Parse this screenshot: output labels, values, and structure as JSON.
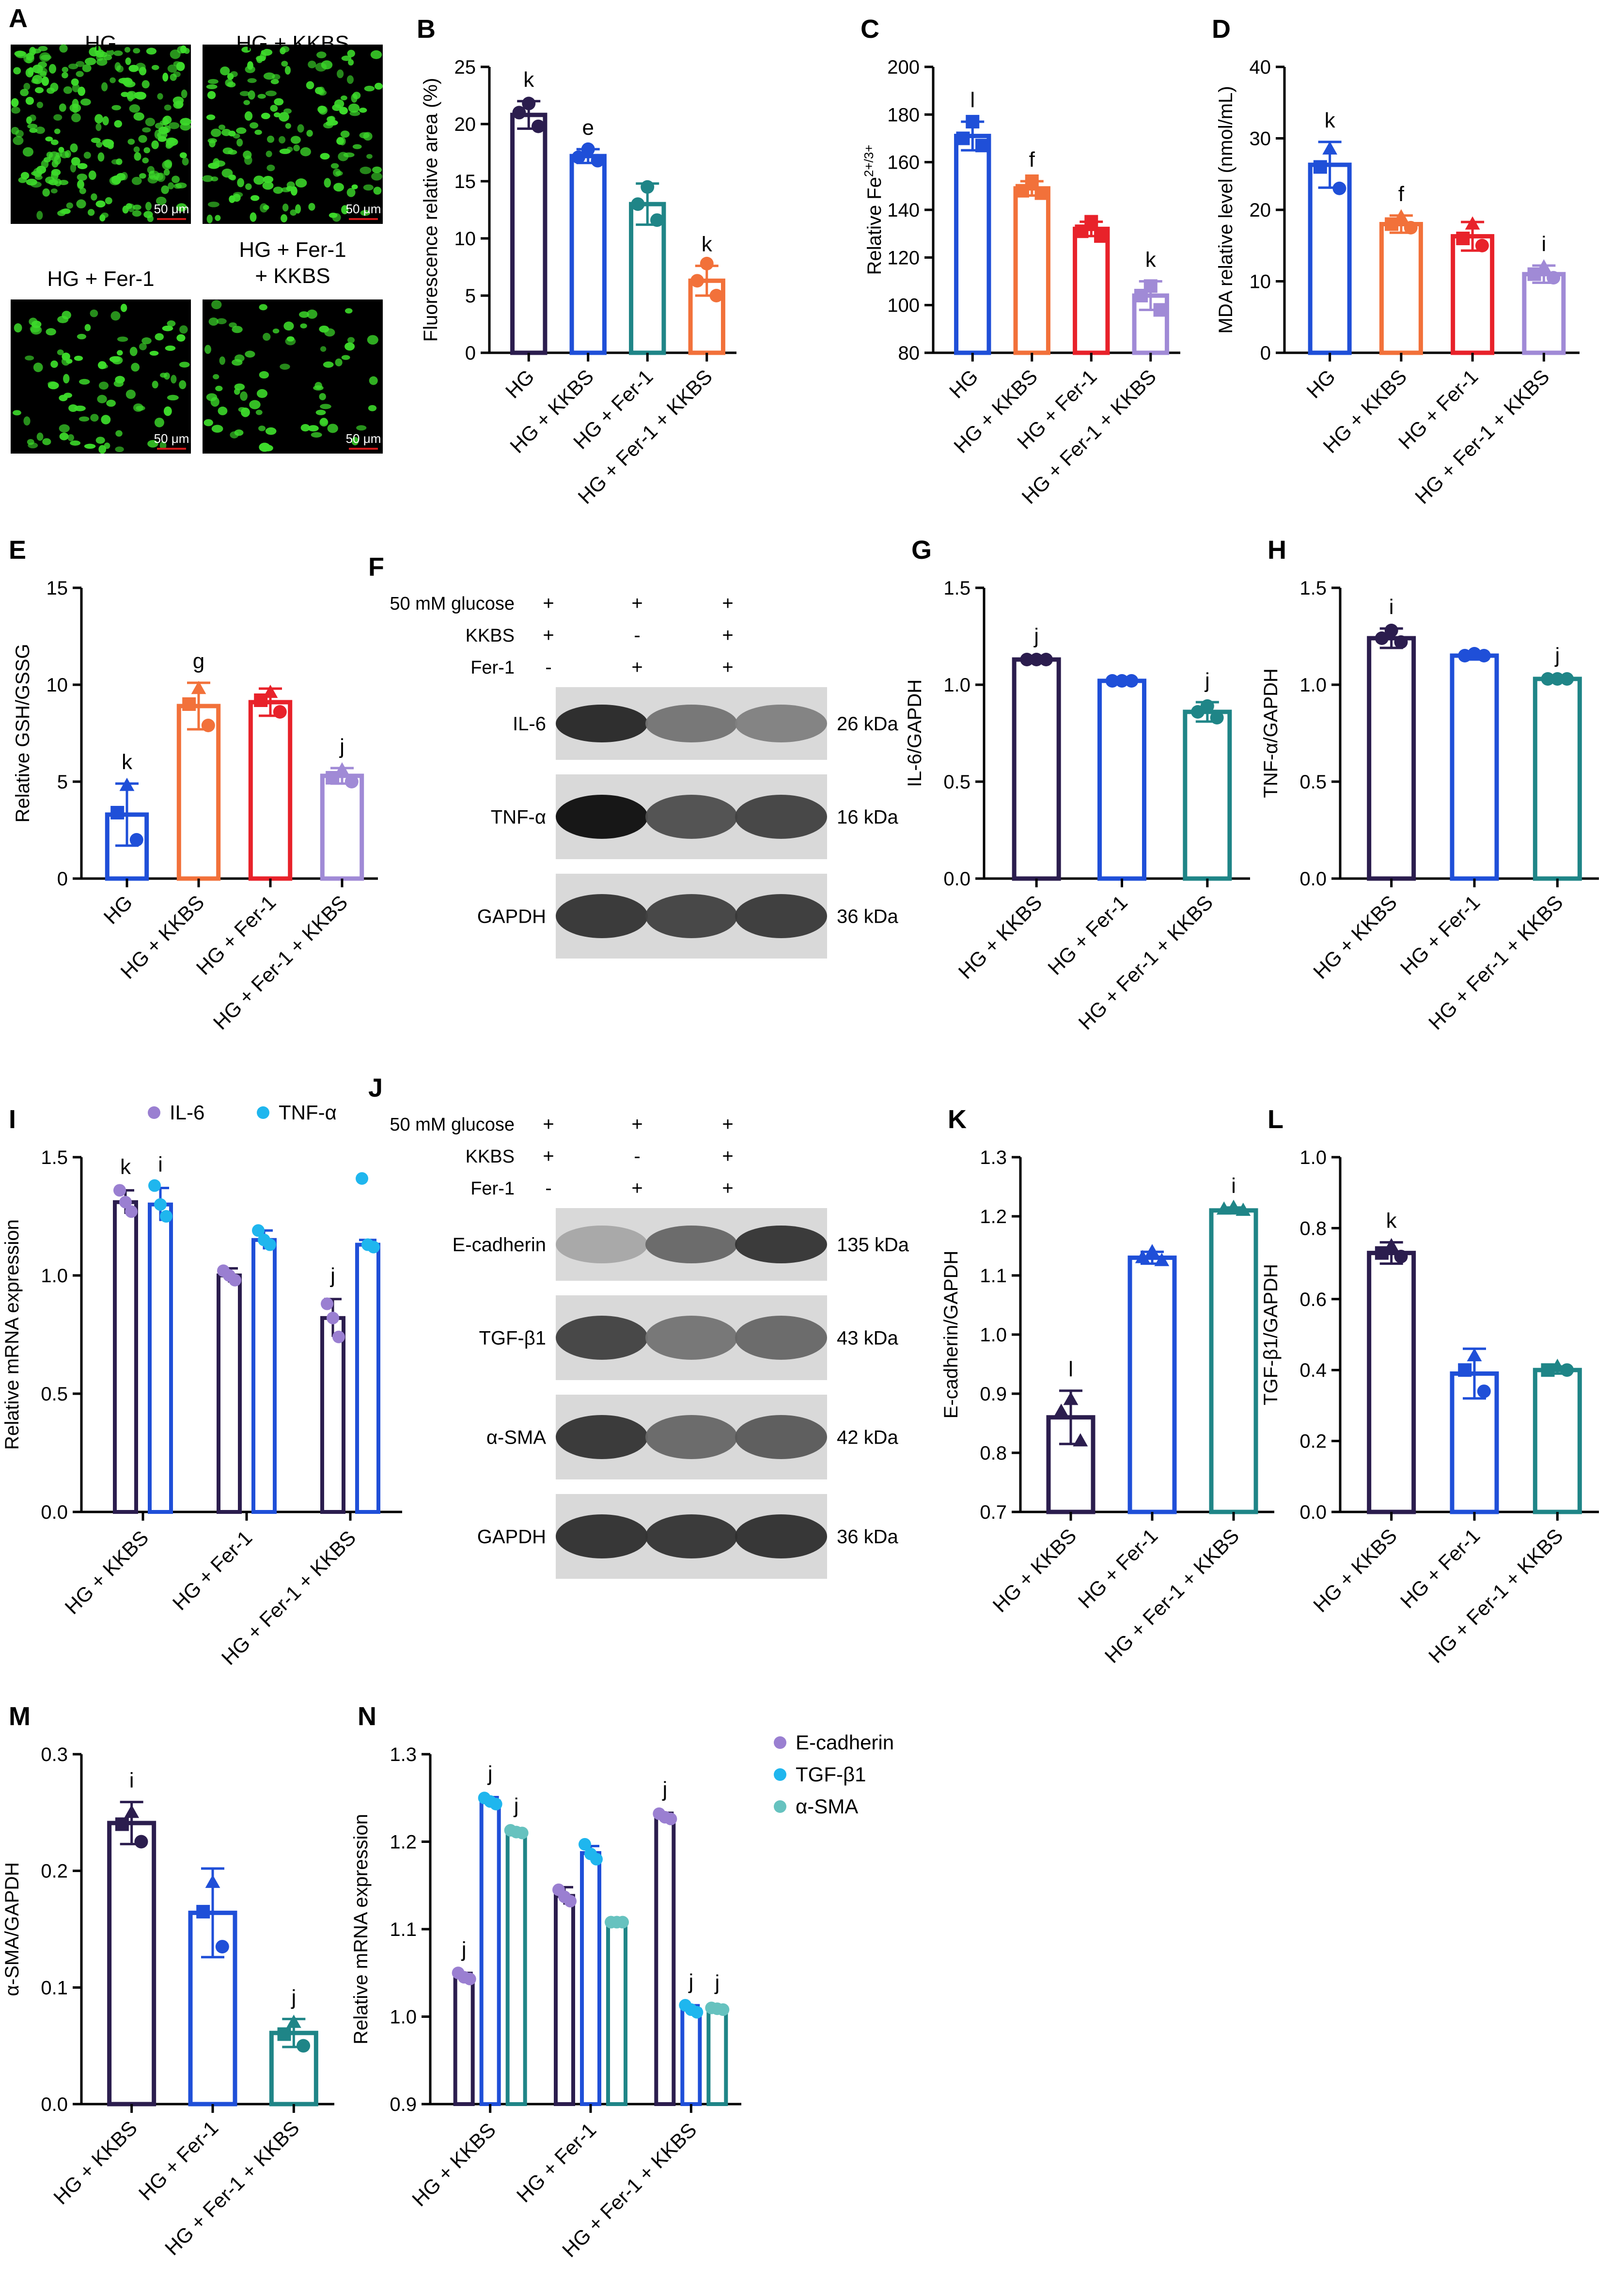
{
  "colors": {
    "navy": "#2b1d4e",
    "blue": "#1f4fd8",
    "teal": "#1f8587",
    "orange": "#f2713a",
    "red": "#e8222a",
    "lilac": "#a08ad6",
    "purple_dot": "#9a7fd1",
    "cyan_dot": "#1fb6ee",
    "tealdot": "#66c2bf",
    "green_cells": "#3ddc2b",
    "scale_bar": "#d11a1a"
  },
  "panels": {
    "A": {
      "letter": "A",
      "images": [
        {
          "label": "HG",
          "scale": "50 μm",
          "density": 0.95
        },
        {
          "label": "HG + KKBS",
          "scale": "50 μm",
          "density": 0.65
        },
        {
          "label": "HG + Fer-1",
          "scale": "50 μm",
          "density": 0.35
        },
        {
          "label": "HG + Fer-1\n+ KKBS",
          "scale": "50 μm",
          "density": 0.28
        }
      ]
    },
    "F": {
      "letter": "F",
      "conditions": [
        {
          "label": "50 mM glucose",
          "marks": [
            "+",
            "+",
            "+"
          ]
        },
        {
          "label": "KKBS",
          "marks": [
            "+",
            "-",
            "+"
          ]
        },
        {
          "label": "Fer-1",
          "marks": [
            "-",
            "+",
            "+"
          ]
        }
      ],
      "blots": [
        {
          "protein": "IL-6",
          "size": "26 kDa",
          "intensity": [
            0.85,
            0.55,
            0.5
          ]
        },
        {
          "protein": "TNF-α",
          "size": "16 kDa",
          "intensity": [
            0.95,
            0.7,
            0.75
          ]
        },
        {
          "protein": "GAPDH",
          "size": "36 kDa",
          "intensity": [
            0.8,
            0.75,
            0.78
          ]
        }
      ]
    },
    "J": {
      "letter": "J",
      "conditions": [
        {
          "label": "50 mM glucose",
          "marks": [
            "+",
            "+",
            "+"
          ]
        },
        {
          "label": "KKBS",
          "marks": [
            "+",
            "-",
            "+"
          ]
        },
        {
          "label": "Fer-1",
          "marks": [
            "-",
            "+",
            "+"
          ]
        }
      ],
      "blots": [
        {
          "protein": "E-cadherin",
          "size": "135 kDa",
          "intensity": [
            0.35,
            0.6,
            0.8
          ]
        },
        {
          "protein": "TGF-β1",
          "size": "43 kDa",
          "intensity": [
            0.75,
            0.55,
            0.6
          ]
        },
        {
          "protein": "α-SMA",
          "size": "42 kDa",
          "intensity": [
            0.8,
            0.6,
            0.65
          ]
        },
        {
          "protein": "GAPDH",
          "size": "36 kDa",
          "intensity": [
            0.82,
            0.8,
            0.82
          ]
        }
      ]
    }
  },
  "chart_data": [
    {
      "id": "B",
      "letter": "B",
      "type": "bar",
      "ylabel": "Fluorescence relative area (%)",
      "ylim": [
        0,
        25
      ],
      "yticks": [
        "0",
        "5",
        "10",
        "15",
        "20",
        "25"
      ],
      "categories": [
        "HG",
        "HG + KKBS",
        "HG + Fer-1",
        "HG + Fer-1 + KKBS"
      ],
      "values": [
        20.8,
        17.2,
        13.0,
        6.3
      ],
      "errors": [
        1.2,
        0.6,
        1.8,
        1.3
      ],
      "points": [
        [
          21.8,
          21.0,
          19.8
        ],
        [
          17.8,
          17.1,
          16.8
        ],
        [
          14.5,
          13.0,
          11.6
        ],
        [
          7.8,
          6.3,
          5.0
        ]
      ],
      "letters": [
        "k",
        "e",
        "",
        "k"
      ],
      "colors": [
        "navy",
        "blue",
        "teal",
        "orange"
      ],
      "marker": "circle"
    },
    {
      "id": "C",
      "letter": "C",
      "type": "bar",
      "ylabel": "Relative Fe",
      "ylabel_sup": "2+/3+",
      "ylim": [
        80,
        200
      ],
      "yticks": [
        "80",
        "100",
        "120",
        "140",
        "160",
        "180",
        "200"
      ],
      "categories": [
        "HG",
        "HG + KKBS",
        "HG + Fer-1",
        "HG + Fer-1 + KKBS"
      ],
      "values": [
        171,
        149,
        132,
        104
      ],
      "errors": [
        6,
        3,
        3,
        6
      ],
      "points": [
        [
          177,
          170,
          167
        ],
        [
          152,
          148,
          147
        ],
        [
          135,
          131,
          129
        ],
        [
          108,
          104,
          98
        ]
      ],
      "letters": [
        "l",
        "f",
        "",
        "k"
      ],
      "colors": [
        "blue",
        "orange",
        "red",
        "lilac"
      ],
      "marker": "square"
    },
    {
      "id": "D",
      "letter": "D",
      "type": "bar",
      "ylabel": "MDA relative level (nmol/mL)",
      "ylim": [
        0,
        40
      ],
      "yticks": [
        "0",
        "10",
        "20",
        "30",
        "40"
      ],
      "categories": [
        "HG",
        "HG + KKBS",
        "HG + Fer-1",
        "HG + Fer-1 + KKBS"
      ],
      "values": [
        26.3,
        18.0,
        16.3,
        11.0
      ],
      "errors": [
        3.2,
        1.2,
        2.0,
        1.2
      ],
      "points": [
        [
          28.5,
          26.0,
          23.0
        ],
        [
          19.0,
          18.0,
          17.5
        ],
        [
          18.0,
          16.0,
          15.0
        ],
        [
          12.0,
          11.0,
          10.5
        ]
      ],
      "letters": [
        "k",
        "f",
        "",
        "i"
      ],
      "colors": [
        "blue",
        "orange",
        "red",
        "lilac"
      ],
      "marker": "mixed"
    },
    {
      "id": "E",
      "letter": "E",
      "type": "bar",
      "ylabel": "Relative GSH/GSSG",
      "ylim": [
        0,
        15
      ],
      "yticks": [
        "0",
        "5",
        "10",
        "15"
      ],
      "categories": [
        "HG",
        "HG + KKBS",
        "HG + Fer-1",
        "HG + Fer-1 + KKBS"
      ],
      "values": [
        3.3,
        8.9,
        9.1,
        5.3
      ],
      "errors": [
        1.6,
        1.2,
        0.7,
        0.4
      ],
      "points": [
        [
          4.8,
          3.4,
          2.0
        ],
        [
          9.8,
          9.0,
          7.9
        ],
        [
          9.6,
          9.2,
          8.6
        ],
        [
          5.6,
          5.2,
          5.0
        ]
      ],
      "letters": [
        "k",
        "g",
        "",
        "j"
      ],
      "colors": [
        "blue",
        "orange",
        "red",
        "lilac"
      ],
      "marker": "mixed"
    },
    {
      "id": "G",
      "letter": "G",
      "type": "bar",
      "ylabel": "IL-6/GAPDH",
      "ylim": [
        0,
        1.5
      ],
      "yticks": [
        "0.0",
        "0.5",
        "1.0",
        "1.5"
      ],
      "categories": [
        "HG + KKBS",
        "HG + Fer-1",
        "HG + Fer-1 + KKBS"
      ],
      "values": [
        1.13,
        1.02,
        0.86
      ],
      "errors": [
        0.01,
        0.01,
        0.05
      ],
      "points": [
        [
          1.13,
          1.13,
          1.13
        ],
        [
          1.02,
          1.02,
          1.02
        ],
        [
          0.89,
          0.86,
          0.83
        ]
      ],
      "letters": [
        "j",
        "",
        "j"
      ],
      "colors": [
        "navy",
        "blue",
        "teal"
      ],
      "marker": "circle"
    },
    {
      "id": "H",
      "letter": "H",
      "type": "bar",
      "ylabel": "TNF-α/GAPDH",
      "ylim": [
        0,
        1.5
      ],
      "yticks": [
        "0.0",
        "0.5",
        "1.0",
        "1.5"
      ],
      "categories": [
        "HG + KKBS",
        "HG + Fer-1",
        "HG + Fer-1 + KKBS"
      ],
      "values": [
        1.24,
        1.15,
        1.03
      ],
      "errors": [
        0.05,
        0.02,
        0.01
      ],
      "points": [
        [
          1.28,
          1.24,
          1.22
        ],
        [
          1.16,
          1.15,
          1.15
        ],
        [
          1.03,
          1.03,
          1.03
        ]
      ],
      "letters": [
        "i",
        "",
        "j"
      ],
      "colors": [
        "navy",
        "blue",
        "teal"
      ],
      "marker": "circle"
    },
    {
      "id": "I",
      "letter": "I",
      "type": "grouped_bar",
      "ylabel": "Relative mRNA expression",
      "ylim": [
        0,
        1.5
      ],
      "yticks": [
        "0.0",
        "0.5",
        "1.0",
        "1.5"
      ],
      "categories": [
        "HG + KKBS",
        "HG + Fer-1",
        "HG + Fer-1 + KKBS"
      ],
      "series": [
        {
          "name": "IL-6",
          "values": [
            1.31,
            1.0,
            0.82
          ],
          "errors": [
            0.05,
            0.03,
            0.08
          ],
          "points": [
            [
              1.36,
              1.31,
              1.27
            ],
            [
              1.02,
              1.0,
              0.98
            ],
            [
              0.88,
              0.82,
              0.74
            ]
          ],
          "bar_color": "navy",
          "dot_color": "purple_dot",
          "letters": [
            "k",
            "",
            "j"
          ]
        },
        {
          "name": "TNF-α",
          "values": [
            1.3,
            1.15,
            1.13
          ],
          "errors": [
            0.07,
            0.04,
            0.02
          ],
          "points": [
            [
              1.38,
              1.3,
              1.25
            ],
            [
              1.19,
              1.15,
              1.13
            ],
            [
              1.41,
              1.13,
              1.12
            ]
          ],
          "bar_color": "blue",
          "dot_color": "cyan_dot",
          "letters": [
            "i",
            "",
            ""
          ]
        }
      ]
    },
    {
      "id": "K",
      "letter": "K",
      "type": "bar",
      "ylabel": "E-cadherin/GAPDH",
      "ylim": [
        0.7,
        1.3
      ],
      "yticks": [
        "0.7",
        "0.8",
        "0.9",
        "1.0",
        "1.1",
        "1.2",
        "1.3"
      ],
      "categories": [
        "HG + KKBS",
        "HG + Fer-1",
        "HG + Fer-1 + KKBS"
      ],
      "values": [
        0.86,
        1.13,
        1.21
      ],
      "errors": [
        0.045,
        0.01,
        0.005
      ],
      "points": [
        [
          0.89,
          0.87,
          0.82
        ],
        [
          1.14,
          1.13,
          1.125
        ],
        [
          1.215,
          1.212,
          1.21
        ]
      ],
      "letters": [
        "l",
        "",
        "i"
      ],
      "colors": [
        "navy",
        "blue",
        "teal"
      ],
      "marker": "triangle"
    },
    {
      "id": "L",
      "letter": "L",
      "type": "bar",
      "ylabel": "TGF-β1/GAPDH",
      "ylim": [
        0,
        1.0
      ],
      "yticks": [
        "0.0",
        "0.2",
        "0.4",
        "0.6",
        "0.8",
        "1.0"
      ],
      "categories": [
        "HG + KKBS",
        "HG + Fer-1",
        "HG + Fer-1 + KKBS"
      ],
      "values": [
        0.73,
        0.39,
        0.4
      ],
      "errors": [
        0.03,
        0.07,
        0.01
      ],
      "points": [
        [
          0.75,
          0.73,
          0.72
        ],
        [
          0.44,
          0.4,
          0.34
        ],
        [
          0.41,
          0.4,
          0.4
        ]
      ],
      "letters": [
        "k",
        "",
        ""
      ],
      "colors": [
        "navy",
        "blue",
        "teal"
      ],
      "marker": "mixed"
    },
    {
      "id": "M",
      "letter": "M",
      "type": "bar",
      "ylabel": "α-SMA/GAPDH",
      "ylim": [
        0,
        0.3
      ],
      "yticks": [
        "0.0",
        "0.1",
        "0.2",
        "0.3"
      ],
      "categories": [
        "HG + KKBS",
        "HG + Fer-1",
        "HG + Fer-1 + KKBS"
      ],
      "values": [
        0.241,
        0.164,
        0.061
      ],
      "errors": [
        0.018,
        0.038,
        0.012
      ],
      "points": [
        [
          0.25,
          0.24,
          0.225
        ],
        [
          0.19,
          0.165,
          0.135
        ],
        [
          0.07,
          0.06,
          0.05
        ]
      ],
      "letters": [
        "i",
        "",
        "j"
      ],
      "colors": [
        "navy",
        "blue",
        "teal"
      ],
      "marker": "mixed"
    },
    {
      "id": "N",
      "letter": "N",
      "type": "grouped_bar",
      "ylabel": "Relative mRNA expression",
      "ylim": [
        0.9,
        1.3
      ],
      "yticks": [
        "0.9",
        "1.0",
        "1.1",
        "1.2",
        "1.3"
      ],
      "categories": [
        "HG + KKBS",
        "HG + Fer-1",
        "HG + Fer-1 + KKBS"
      ],
      "series": [
        {
          "name": "E-cadherin",
          "values": [
            1.045,
            1.138,
            1.228
          ],
          "errors": [
            0.005,
            0.01,
            0.005
          ],
          "points": [
            [
              1.05,
              1.045,
              1.043
            ],
            [
              1.145,
              1.137,
              1.132
            ],
            [
              1.232,
              1.228,
              1.226
            ]
          ],
          "bar_color": "navy",
          "dot_color": "purple_dot",
          "letters": [
            "j",
            "",
            "j"
          ]
        },
        {
          "name": "TGF-β1",
          "values": [
            1.246,
            1.187,
            1.008
          ],
          "errors": [
            0.005,
            0.008,
            0.005
          ],
          "points": [
            [
              1.25,
              1.246,
              1.243
            ],
            [
              1.197,
              1.186,
              1.18
            ],
            [
              1.013,
              1.008,
              1.005
            ]
          ],
          "bar_color": "blue",
          "dot_color": "cyan_dot",
          "letters": [
            "j",
            "",
            "j"
          ]
        },
        {
          "name": "α-SMA",
          "values": [
            1.211,
            1.108,
            1.009
          ],
          "errors": [
            0.003,
            0.002,
            0.003
          ],
          "points": [
            [
              1.213,
              1.211,
              1.21
            ],
            [
              1.108,
              1.108,
              1.108
            ],
            [
              1.01,
              1.009,
              1.008
            ]
          ],
          "bar_color": "teal",
          "dot_color": "tealdot",
          "letters": [
            "j",
            "",
            "j"
          ]
        }
      ]
    }
  ]
}
